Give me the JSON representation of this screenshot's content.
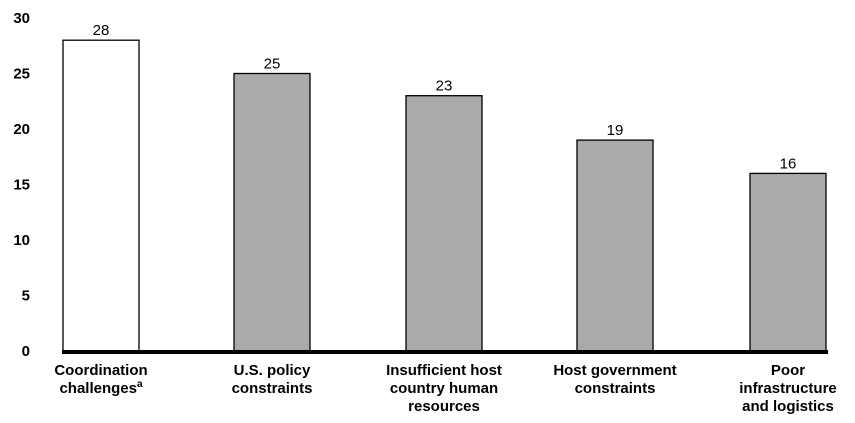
{
  "chart_data": {
    "type": "bar",
    "categories": [
      {
        "lines": [
          "Coordination",
          "challenges"
        ],
        "superscript": "a"
      },
      {
        "lines": [
          "U.S. policy",
          "constraints"
        ],
        "superscript": ""
      },
      {
        "lines": [
          "Insufficient host",
          "country human",
          "resources"
        ],
        "superscript": ""
      },
      {
        "lines": [
          "Host government",
          "constraints"
        ],
        "superscript": ""
      },
      {
        "lines": [
          "Poor",
          "infrastructure",
          "and logistics"
        ],
        "superscript": ""
      }
    ],
    "values": [
      28,
      25,
      23,
      19,
      16
    ],
    "data_labels": [
      "28",
      "25",
      "23",
      "19",
      "16"
    ],
    "bar_colors": [
      "#ffffff",
      "#aaaaaa",
      "#aaaaaa",
      "#aaaaaa",
      "#aaaaaa"
    ],
    "ylim": [
      0,
      30
    ],
    "yticks": [
      "0",
      "5",
      "10",
      "15",
      "20",
      "25",
      "30"
    ],
    "title": "",
    "xlabel": "",
    "ylabel": "",
    "grid": false,
    "legend": "none"
  }
}
